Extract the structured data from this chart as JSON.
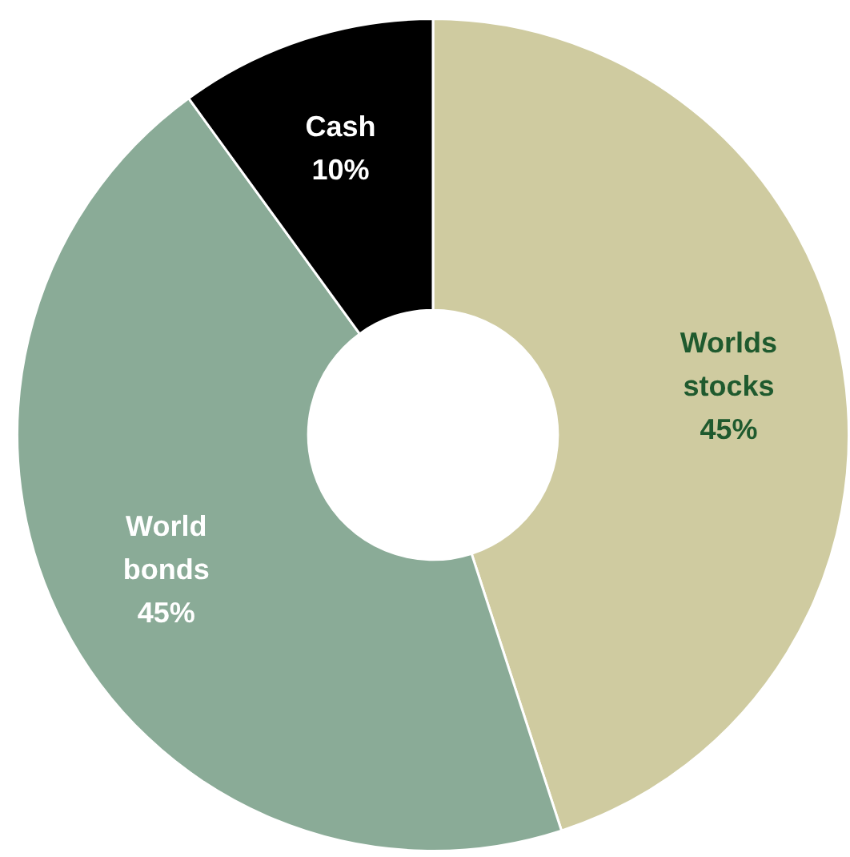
{
  "chart_data": {
    "type": "donut",
    "categories": [
      "Worlds stocks",
      "World bonds",
      "Cash"
    ],
    "values": [
      45,
      45,
      10
    ],
    "colors": [
      "#cfcba0",
      "#8aab97",
      "#000000"
    ],
    "value_labels": [
      "45%",
      "45%",
      "10%"
    ],
    "legend": false
  }
}
